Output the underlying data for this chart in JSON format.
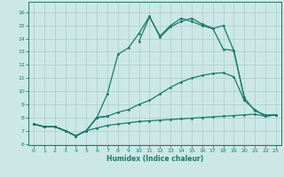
{
  "xlabel": "Humidex (Indice chaleur)",
  "background_color": "#cce8e6",
  "line_color": "#1a7a6a",
  "grid_color": "#aaccca",
  "xlim": [
    -0.5,
    23.5
  ],
  "ylim": [
    5.9,
    16.8
  ],
  "xticks": [
    0,
    1,
    2,
    3,
    4,
    5,
    6,
    7,
    8,
    9,
    10,
    11,
    12,
    13,
    14,
    15,
    16,
    17,
    18,
    19,
    20,
    21,
    22,
    23
  ],
  "yticks": [
    6,
    7,
    8,
    9,
    10,
    11,
    12,
    13,
    14,
    15,
    16
  ],
  "lines": [
    {
      "x": [
        0,
        1,
        2,
        3,
        4,
        5,
        6,
        7,
        8,
        9,
        10,
        11,
        12,
        13,
        14,
        15,
        16,
        17,
        18,
        19,
        20,
        21,
        22,
        23
      ],
      "y": [
        7.5,
        7.3,
        7.3,
        7.0,
        6.6,
        7.0,
        7.2,
        7.4,
        7.5,
        7.6,
        7.7,
        7.75,
        7.8,
        7.85,
        7.9,
        7.95,
        8.0,
        8.05,
        8.1,
        8.15,
        8.2,
        8.25,
        8.1,
        8.2
      ]
    },
    {
      "x": [
        0,
        1,
        2,
        3,
        4,
        5,
        6,
        7,
        8,
        9,
        10,
        11,
        12,
        13,
        14,
        15,
        16,
        17,
        18,
        19,
        20,
        21,
        22,
        23
      ],
      "y": [
        7.5,
        7.3,
        7.3,
        7.0,
        6.6,
        7.0,
        8.0,
        8.1,
        8.4,
        8.6,
        9.0,
        9.3,
        9.8,
        10.3,
        10.7,
        11.0,
        11.2,
        11.35,
        11.4,
        11.1,
        9.3,
        8.6,
        8.1,
        8.2
      ]
    },
    {
      "x": [
        0,
        1,
        2,
        3,
        4,
        5,
        6,
        7,
        8,
        9,
        10,
        11,
        12,
        13,
        14,
        15,
        16,
        17,
        18,
        19,
        20,
        21,
        22,
        23
      ],
      "y": [
        7.5,
        7.3,
        7.3,
        7.0,
        6.6,
        7.0,
        8.0,
        9.8,
        12.8,
        13.3,
        14.4,
        15.7,
        14.1,
        14.9,
        15.3,
        15.55,
        15.1,
        14.8,
        13.2,
        13.1,
        9.5,
        null,
        null,
        null
      ]
    },
    {
      "x": [
        0,
        1,
        2,
        3,
        4,
        5,
        6,
        7,
        8,
        9,
        10,
        11,
        12,
        13,
        14,
        15,
        16,
        17,
        18,
        19,
        20,
        21,
        22,
        23
      ],
      "y": [
        7.5,
        7.3,
        7.3,
        7.0,
        6.6,
        7.0,
        8.0,
        8.1,
        null,
        null,
        13.8,
        15.65,
        14.2,
        15.0,
        15.55,
        15.3,
        15.0,
        14.75,
        15.0,
        13.1,
        9.5,
        8.5,
        8.2,
        8.2
      ]
    }
  ]
}
